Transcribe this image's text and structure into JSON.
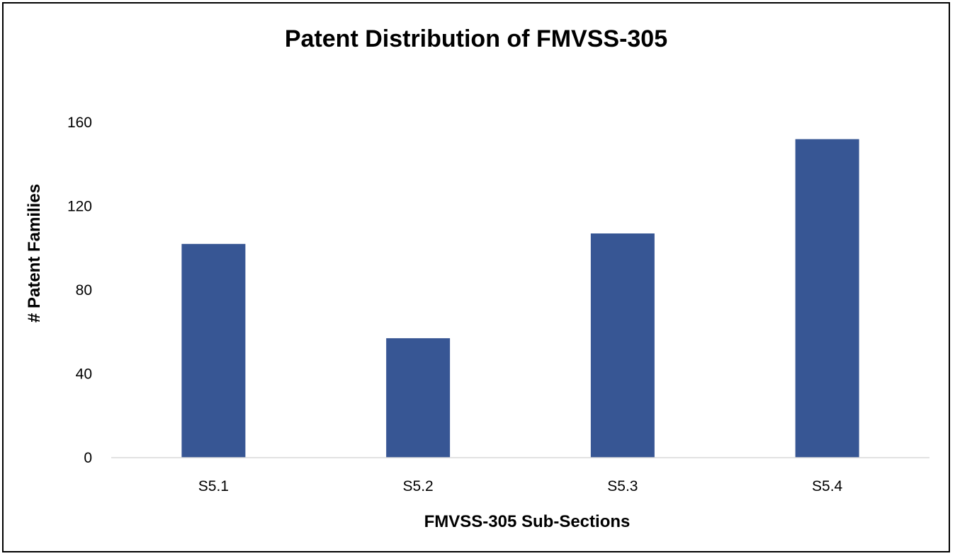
{
  "chart_data": {
    "type": "bar",
    "title": "Patent Distribution of FMVSS-305",
    "xlabel": "FMVSS-305 Sub-Sections",
    "ylabel": "#  Patent Families",
    "categories": [
      "S5.1",
      "S5.2",
      "S5.3",
      "S5.4"
    ],
    "values": [
      102,
      57,
      107,
      152
    ],
    "ylim": [
      0,
      160
    ],
    "yticks": [
      "0",
      "40",
      "80",
      "120",
      "160"
    ],
    "grid": false,
    "legend": "none",
    "colors": {
      "bar": "#375694",
      "axis": "#d9d9d9",
      "text": "#000000"
    }
  }
}
